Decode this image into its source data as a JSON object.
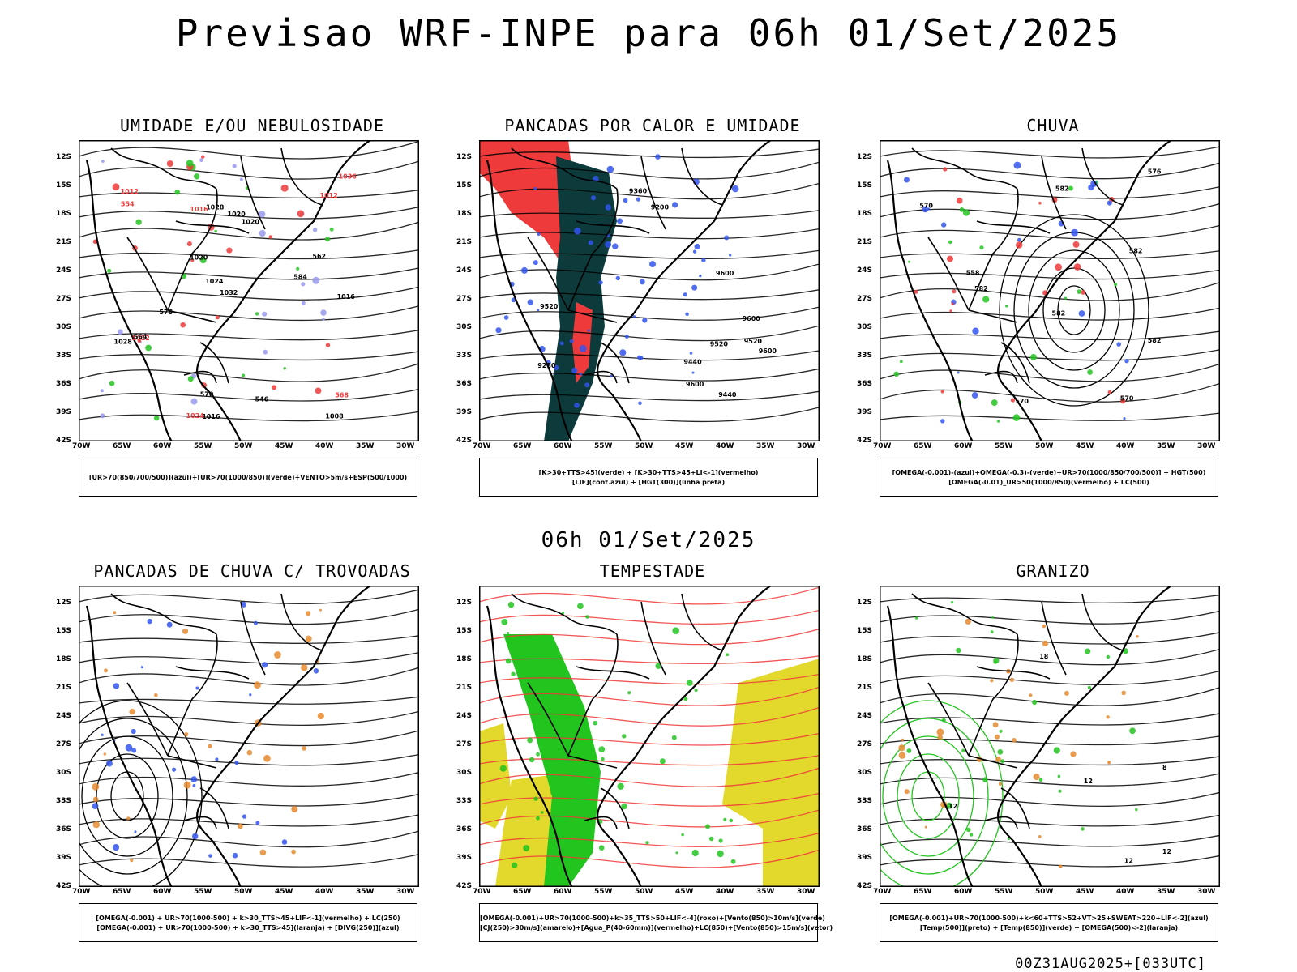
{
  "header": {
    "title": "Previsao WRF-INPE  para 06h 01/Set/2025"
  },
  "middle": {
    "title": "06h 01/Set/2025"
  },
  "footer": {
    "text": "00Z31AUG2025+[033UTC]"
  },
  "axes": {
    "lat_labels": [
      "12S",
      "15S",
      "18S",
      "21S",
      "24S",
      "27S",
      "30S",
      "33S",
      "36S",
      "39S",
      "42S"
    ],
    "lon_labels": [
      "70W",
      "65W",
      "60W",
      "55W",
      "50W",
      "45W",
      "40W",
      "35W",
      "30W"
    ]
  },
  "colors": {
    "green": "#22c41e",
    "red": "#ee3a3a",
    "blue": "#3355ee",
    "dark_teal": "#0d3b3b",
    "lavender": "#9999ee",
    "orange": "#e88a2e",
    "yellow": "#e3d82c",
    "purple": "#8833aa"
  },
  "panels": [
    {
      "id": "umidade",
      "title": "UMIDADE E/OU NEBULOSIDADE",
      "legend": [
        "[UR>70(850/700/500)](azul)+[UR>70(1000/850)](verde)+VENTO>5m/s+ESP(500/1000)"
      ],
      "contour_labels": [
        "1012",
        "1020",
        "1016",
        "1012",
        "1020",
        "1024",
        "1024",
        "1028",
        "1032",
        "1036",
        "1028",
        "1016",
        "1012",
        "1008",
        "1020",
        "1016",
        "584",
        "576",
        "568",
        "570",
        "562",
        "554",
        "564",
        "546"
      ]
    },
    {
      "id": "pancadas-calor",
      "title": "PANCADAS POR CALOR E UMIDADE",
      "legend": [
        "[K>30+TTS>45](verde) + [K>30+TTS>45+LI<-1](vermelho)",
        "[LIF](cont.azul) + [HGT(300)](linha preta)"
      ],
      "contour_labels": [
        "9600",
        "9600",
        "9600",
        "9600",
        "9520",
        "9520",
        "9520",
        "9440",
        "9440",
        "9360",
        "9280",
        "9200"
      ]
    },
    {
      "id": "chuva",
      "title": "CHUVA",
      "legend": [
        "[OMEGA(-0.001)-(azul)+OMEGA(-0.3)-(verde)+UR>70(1000/850/700/500)] + HGT(500)",
        "[OMEGA(-0.01)_UR>50(1000/850)(vermelho) + LC(500)"
      ],
      "contour_labels": [
        "582",
        "582",
        "582",
        "582",
        "570",
        "570",
        "558",
        "582",
        "576",
        "570"
      ]
    },
    {
      "id": "pancadas-trovoadas",
      "title": "PANCADAS DE CHUVA C/ TROVOADAS",
      "legend": [
        "[OMEGA(-0.001) + UR>70(1000-500) + k>30_TTS>45+LIF<-1](vermelho) + LC(250)",
        "[OMEGA(-0.001) + UR>70(1000-500) + k>30_TTS>45](laranja) + [DIVG(250)](azul)"
      ]
    },
    {
      "id": "tempestade",
      "title": "TEMPESTADE",
      "legend": [
        "[OMEGA(-0.001)+UR>70(1000-500)+k>35_TTS>50+LIF<-4](roxo)+[Vento(850)>10m/s](verde)",
        "[CJ(250)>30m/s](amarelo)+[Agua_P(40-60mm)](vermelho)+LC(850)+[Vento(850)>15m/s](vetor)"
      ]
    },
    {
      "id": "granizo",
      "title": "GRANIZO",
      "legend": [
        "[OMEGA(-0.001)+UR>70(1000-500)+k<60+TTS>52+VT>25+SWEAT>220+LIF<-2](azul)",
        "[Temp(500)](preto) + [Temp(850)](verde) + [OMEGA(500)<-2](laranja)"
      ],
      "contour_labels": [
        "12",
        "12",
        "12",
        "18",
        "12",
        "8"
      ]
    }
  ]
}
